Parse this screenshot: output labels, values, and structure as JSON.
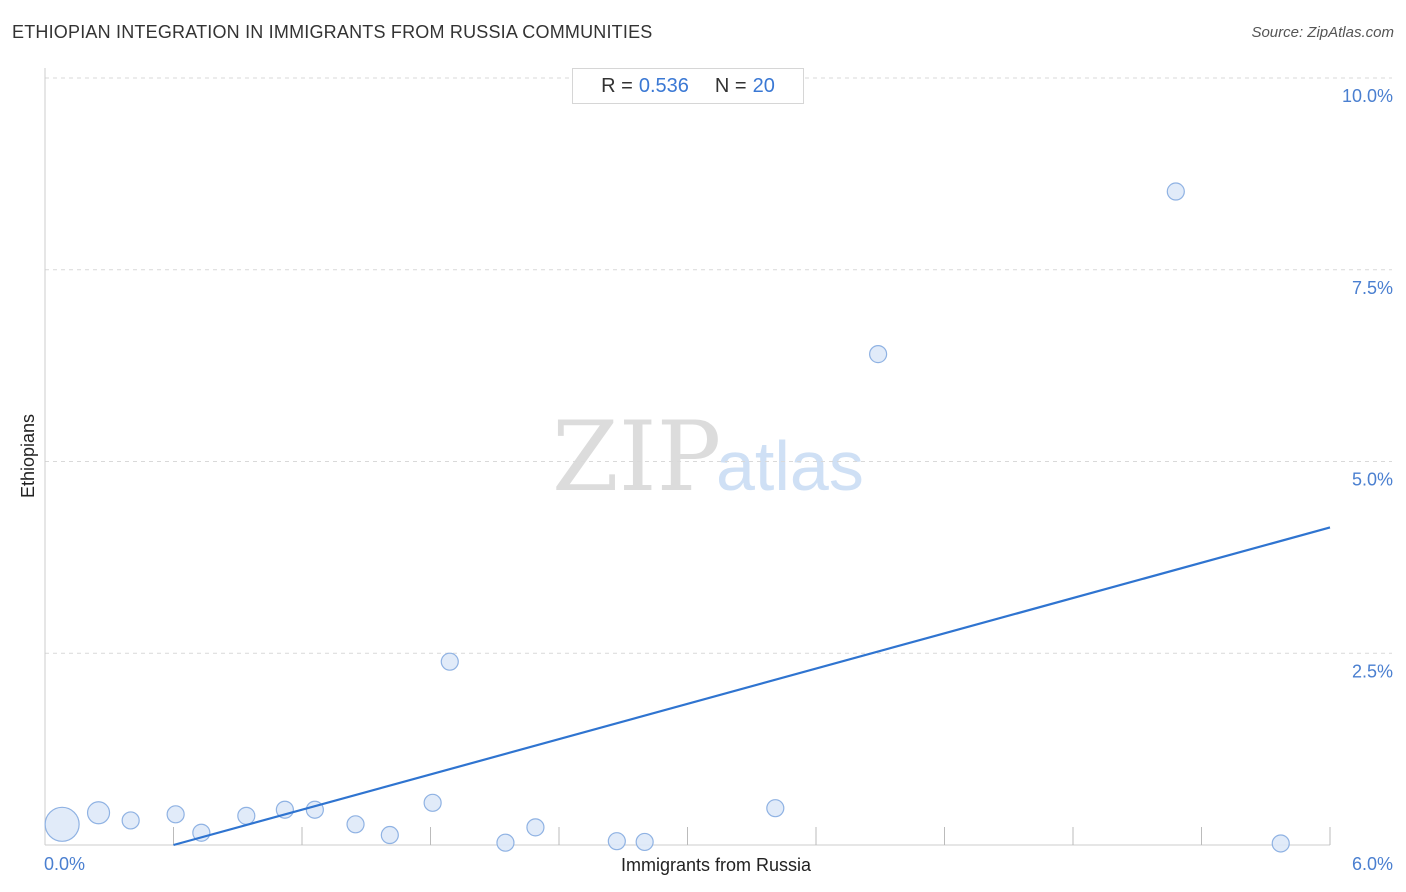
{
  "header": {
    "title": "ETHIOPIAN INTEGRATION IN IMMIGRANTS FROM RUSSIA COMMUNITIES",
    "source": "Source: ZipAtlas.com"
  },
  "stats": {
    "r_label": "R =",
    "r_value": "0.536",
    "n_label": "N =",
    "n_value": "20"
  },
  "watermark": {
    "zip": "ZIP",
    "atlas": "atlas"
  },
  "colors": {
    "accent": "#3a78d4",
    "point_fill": "#dce8f8",
    "point_stroke": "#8fb2e3",
    "trend": "#2f74d0",
    "grid": "#d9d9d9"
  },
  "chart_data": {
    "type": "scatter",
    "title": "ETHIOPIAN INTEGRATION IN IMMIGRANTS FROM RUSSIA COMMUNITIES",
    "xlabel": "Immigrants from Russia",
    "ylabel": "Ethiopians",
    "xlim": [
      0,
      6
    ],
    "ylim": [
      0,
      10
    ],
    "x_tick_labels": [
      "0.0%",
      "6.0%"
    ],
    "y_ticks": [
      2.5,
      5.0,
      7.5,
      10.0
    ],
    "y_tick_labels": [
      "2.5%",
      "5.0%",
      "7.5%",
      "10.0%"
    ],
    "grid": "horizontal dashed",
    "points": [
      {
        "x": 0.08,
        "y": 0.27,
        "size": "large"
      },
      {
        "x": 0.25,
        "y": 0.42,
        "size": "medium"
      },
      {
        "x": 0.4,
        "y": 0.32,
        "size": "small"
      },
      {
        "x": 0.61,
        "y": 0.4,
        "size": "small"
      },
      {
        "x": 0.73,
        "y": 0.16,
        "size": "small"
      },
      {
        "x": 0.94,
        "y": 0.38,
        "size": "small"
      },
      {
        "x": 1.12,
        "y": 0.46,
        "size": "small"
      },
      {
        "x": 1.26,
        "y": 0.46,
        "size": "small"
      },
      {
        "x": 1.45,
        "y": 0.27,
        "size": "small"
      },
      {
        "x": 1.61,
        "y": 0.13,
        "size": "small"
      },
      {
        "x": 1.81,
        "y": 0.55,
        "size": "small"
      },
      {
        "x": 1.89,
        "y": 2.39,
        "size": "small"
      },
      {
        "x": 2.15,
        "y": 0.03,
        "size": "small"
      },
      {
        "x": 2.29,
        "y": 0.23,
        "size": "small"
      },
      {
        "x": 2.67,
        "y": 0.05,
        "size": "small"
      },
      {
        "x": 2.8,
        "y": 0.04,
        "size": "small"
      },
      {
        "x": 3.41,
        "y": 0.48,
        "size": "small"
      },
      {
        "x": 3.89,
        "y": 6.4,
        "size": "small"
      },
      {
        "x": 5.28,
        "y": 8.52,
        "size": "small"
      },
      {
        "x": 5.77,
        "y": 0.02,
        "size": "small"
      }
    ],
    "trendline": {
      "x": [
        0.6,
        6.0
      ],
      "y": [
        0.0,
        4.14
      ]
    }
  }
}
